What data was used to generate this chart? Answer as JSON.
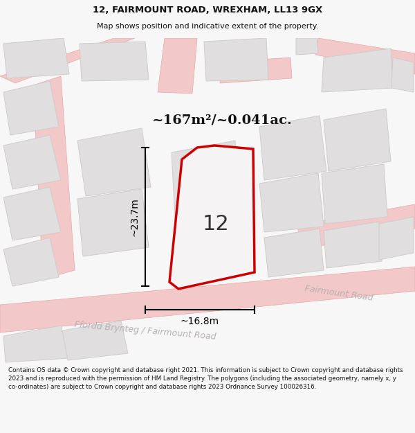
{
  "title_line1": "12, FAIRMOUNT ROAD, WREXHAM, LL13 9GX",
  "title_line2": "Map shows position and indicative extent of the property.",
  "area_text": "~167m²/~0.041ac.",
  "dim_width": "~16.8m",
  "dim_height": "~23.7m",
  "plot_number": "12",
  "footer_text": "Contains OS data © Crown copyright and database right 2021. This information is subject to Crown copyright and database rights 2023 and is reproduced with the permission of HM Land Registry. The polygons (including the associated geometry, namely x, y co-ordinates) are subject to Crown copyright and database rights 2023 Ordnance Survey 100026316.",
  "bg_color": "#f7f7f7",
  "map_bg": "#eeecec",
  "road_fill": "#f2c8c8",
  "road_edge": "#e8a8a8",
  "bld_fill": "#e0dede",
  "bld_edge": "#d0cccc",
  "prop_fill": "#f5f3f3",
  "prop_edge": "#cc0000",
  "road_label_color": "#b8b0b0",
  "dim_color": "#111111",
  "title_color": "#111111"
}
